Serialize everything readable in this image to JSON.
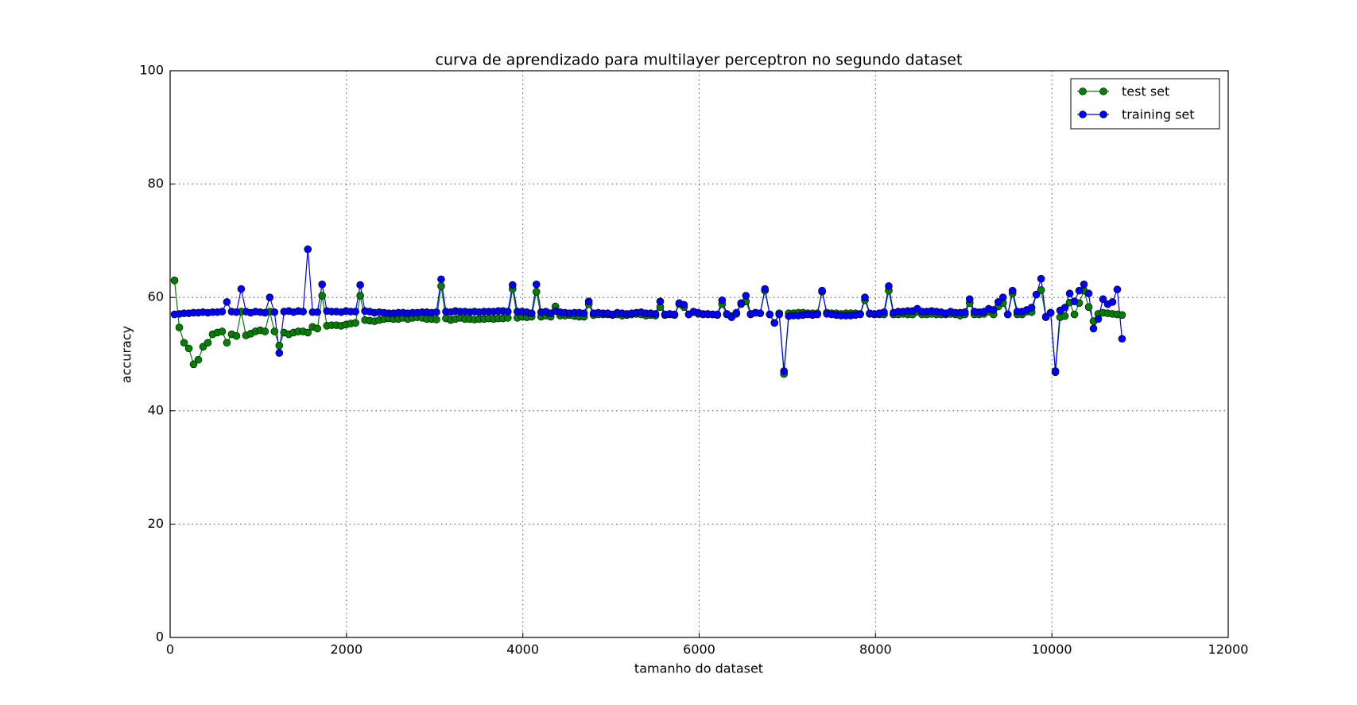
{
  "chart_data": {
    "type": "line",
    "title": "curva de aprendizado para multilayer perceptron no segundo dataset",
    "x_label": "tamanho do dataset",
    "y_label": "accuracy",
    "xlim": [
      0,
      12000
    ],
    "xticks": [
      0,
      2000,
      4000,
      6000,
      8000,
      10000,
      12000
    ],
    "ylim": [
      0,
      100
    ],
    "yticks": [
      0,
      20,
      40,
      60,
      80,
      100
    ],
    "grid": true,
    "legend": "upper right",
    "x": [
      50,
      104,
      158,
      212,
      266,
      320,
      374,
      428,
      482,
      536,
      590,
      644,
      698,
      752,
      806,
      860,
      914,
      968,
      1022,
      1076,
      1130,
      1184,
      1238,
      1292,
      1346,
      1400,
      1454,
      1508,
      1562,
      1616,
      1670,
      1724,
      1778,
      1832,
      1886,
      1940,
      1994,
      2048,
      2102,
      2156,
      2210,
      2264,
      2318,
      2372,
      2426,
      2480,
      2534,
      2588,
      2642,
      2696,
      2750,
      2804,
      2858,
      2912,
      2966,
      3020,
      3074,
      3128,
      3182,
      3236,
      3290,
      3344,
      3398,
      3452,
      3506,
      3560,
      3614,
      3668,
      3722,
      3776,
      3830,
      3884,
      3938,
      3992,
      4046,
      4100,
      4154,
      4208,
      4262,
      4316,
      4370,
      4424,
      4478,
      4532,
      4586,
      4640,
      4694,
      4748,
      4802,
      4856,
      4910,
      4964,
      5018,
      5072,
      5126,
      5180,
      5234,
      5288,
      5342,
      5396,
      5450,
      5504,
      5558,
      5612,
      5666,
      5720,
      5774,
      5828,
      5882,
      5936,
      5990,
      6044,
      6098,
      6152,
      6206,
      6260,
      6314,
      6368,
      6422,
      6476,
      6530,
      6584,
      6638,
      6692,
      6746,
      6800,
      6854,
      6908,
      6962,
      7016,
      7070,
      7124,
      7178,
      7232,
      7286,
      7340,
      7394,
      7448,
      7502,
      7556,
      7610,
      7664,
      7718,
      7772,
      7826,
      7880,
      7934,
      7988,
      8042,
      8096,
      8150,
      8204,
      8258,
      8312,
      8366,
      8420,
      8474,
      8528,
      8582,
      8636,
      8690,
      8744,
      8798,
      8852,
      8906,
      8960,
      9014,
      9068,
      9122,
      9176,
      9230,
      9284,
      9338,
      9392,
      9446,
      9500,
      9554,
      9608,
      9662,
      9716,
      9770,
      9824,
      9878,
      9932,
      9986,
      10040,
      10094,
      10148,
      10202,
      10256,
      10310,
      10364,
      10418,
      10472,
      10526,
      10580,
      10634,
      10688,
      10742,
      10796
    ],
    "series": [
      {
        "name": "test set",
        "color": "#008000",
        "values": [
          63,
          54.7,
          52,
          51,
          48.2,
          49,
          51.3,
          52,
          53.5,
          53.8,
          54,
          52,
          53.5,
          53.2,
          57.5,
          53.3,
          53.6,
          54,
          54.2,
          54,
          57.5,
          54,
          51.5,
          53.8,
          53.5,
          53.8,
          54,
          54,
          53.8,
          54.8,
          54.5,
          60.3,
          55,
          55.1,
          55.1,
          55,
          55.2,
          55.4,
          55.5,
          60.3,
          56,
          55.9,
          55.8,
          56,
          56.2,
          56.3,
          56.2,
          56.2,
          56.4,
          56.2,
          56.4,
          56.5,
          56.4,
          56.2,
          56.2,
          56.1,
          62,
          56.3,
          56,
          56.2,
          56.4,
          56.2,
          56.2,
          56.1,
          56.2,
          56.2,
          56.3,
          56.2,
          56.3,
          56.3,
          56.4,
          61.5,
          56.4,
          56.6,
          56.5,
          56.6,
          61,
          56.6,
          56.8,
          56.6,
          58.4,
          56.8,
          56.8,
          56.9,
          56.7,
          56.6,
          56.6,
          58.8,
          56.9,
          57,
          57,
          57,
          56.9,
          57,
          56.8,
          56.9,
          57,
          57.1,
          57,
          56.8,
          56.9,
          56.8,
          58.3,
          56.9,
          57,
          56.9,
          58.8,
          58.3,
          57,
          57.4,
          57.1,
          57,
          57,
          57,
          56.9,
          58.8,
          57,
          56.7,
          57.1,
          58.8,
          59.3,
          57,
          57.3,
          57.2,
          61.2,
          57,
          55.5,
          57.2,
          46.5,
          57.2,
          57.2,
          57.3,
          57.3,
          57.2,
          57.2,
          57.2,
          61,
          57.3,
          57.2,
          57.2,
          57.1,
          57.2,
          57.2,
          57.2,
          57.1,
          59.5,
          57.1,
          57,
          57,
          57,
          61.2,
          57,
          57,
          57.1,
          57,
          57,
          57.5,
          57,
          57,
          57.1,
          57,
          57,
          57,
          57.1,
          57,
          56.8,
          57,
          59,
          57,
          57,
          57.1,
          57.5,
          57,
          58.4,
          59,
          57,
          60.7,
          57,
          57,
          57.5,
          57.4,
          60.5,
          61.3,
          56.5,
          57.3,
          46.8,
          56.5,
          56.7,
          59.1,
          57,
          59,
          61.2,
          58.3,
          55.8,
          57.1,
          57.3,
          57.2,
          57.1,
          57,
          56.9
        ]
      },
      {
        "name": "training set",
        "color": "#0000ff",
        "values": [
          57,
          57.1,
          57.2,
          57.2,
          57.3,
          57.3,
          57.4,
          57.3,
          57.4,
          57.4,
          57.5,
          59.2,
          57.5,
          57.4,
          61.5,
          57.5,
          57.3,
          57.5,
          57.4,
          57.3,
          60,
          57.4,
          50.2,
          57.5,
          57.6,
          57.4,
          57.6,
          57.5,
          68.5,
          57.4,
          57.4,
          62.3,
          57.6,
          57.5,
          57.5,
          57.4,
          57.6,
          57.5,
          57.5,
          62.2,
          57.6,
          57.5,
          57.3,
          57.4,
          57.3,
          57.2,
          57.2,
          57.3,
          57.3,
          57.2,
          57.3,
          57.3,
          57.4,
          57.4,
          57.3,
          57.4,
          63.2,
          57.5,
          57.4,
          57.6,
          57.5,
          57.5,
          57.4,
          57.5,
          57.4,
          57.5,
          57.5,
          57.5,
          57.6,
          57.6,
          57.5,
          62.2,
          57.5,
          57.5,
          57.4,
          57.2,
          62.3,
          57.4,
          57.5,
          57.2,
          57.6,
          57.4,
          57.3,
          57.2,
          57.3,
          57.3,
          57.2,
          59.3,
          57.2,
          57.3,
          57.2,
          57.2,
          57.0,
          57.3,
          57.2,
          57.1,
          57.2,
          57.3,
          57.4,
          57.2,
          57.2,
          57.1,
          59.3,
          57.0,
          57.1,
          57.0,
          59.0,
          58.7,
          57.0,
          57.5,
          57.3,
          57.1,
          57.1,
          57.0,
          57.0,
          59.5,
          57.1,
          56.5,
          57.3,
          59.0,
          60.3,
          57.1,
          57.3,
          57.2,
          61.5,
          57.0,
          55.5,
          57.0,
          47.0,
          56.7,
          56.8,
          56.8,
          56.9,
          57.0,
          56.9,
          57.0,
          61.2,
          57.1,
          57.0,
          56.9,
          56.8,
          56.8,
          56.8,
          56.9,
          57.0,
          60.0,
          57.2,
          57.1,
          57.2,
          57.4,
          62.0,
          57.3,
          57.5,
          57.5,
          57.6,
          57.6,
          58.0,
          57.5,
          57.5,
          57.6,
          57.5,
          57.4,
          57.2,
          57.5,
          57.3,
          57.3,
          57.4,
          59.7,
          57.5,
          57.4,
          57.5,
          58.0,
          57.8,
          59.2,
          60.0,
          57.0,
          61.2,
          57.5,
          57.5,
          57.8,
          58.2,
          60.5,
          63.3,
          56.6,
          57.3,
          47.0,
          57.7,
          58.2,
          60.7,
          59.3,
          61.2,
          62.3,
          60.7,
          54.5,
          56.2,
          59.7,
          58.8,
          59.2,
          61.4,
          52.7
        ]
      }
    ]
  }
}
